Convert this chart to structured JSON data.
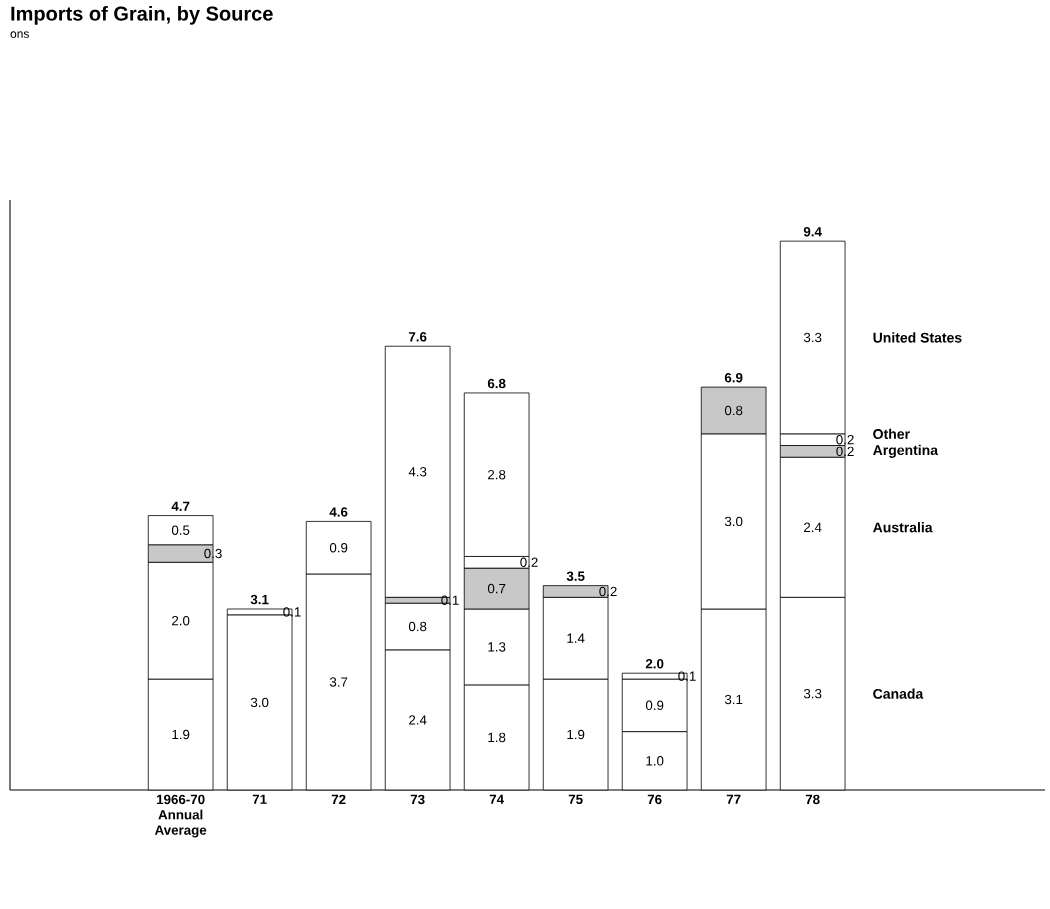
{
  "chart_data": {
    "type": "bar",
    "stacked": true,
    "title": "Imports of Grain, by Source",
    "subtitle": "ons",
    "categories": [
      "1966-70 Annual Average",
      "71",
      "72",
      "73",
      "74",
      "75",
      "76",
      "77",
      "78"
    ],
    "series": [
      {
        "name": "Canada",
        "color": "#ffffff",
        "values": [
          1.9,
          3.0,
          3.7,
          2.4,
          1.8,
          1.9,
          1.0,
          3.1,
          3.3
        ],
        "value_labels": [
          "1.9",
          "3.0",
          "3.7",
          "2.4",
          "1.8",
          "1.9",
          "1.0",
          "3.1",
          "3.3"
        ]
      },
      {
        "name": "Australia",
        "color": "#ffffff",
        "values": [
          2.0,
          null,
          null,
          0.8,
          1.3,
          1.4,
          0.9,
          3.0,
          2.4
        ],
        "value_labels": [
          "2.0",
          null,
          null,
          "0.8",
          "1.3",
          "1.4",
          "0.9",
          "3.0",
          "2.4"
        ]
      },
      {
        "name": "Argentina",
        "color": "#c8c8c8",
        "values": [
          0.3,
          null,
          null,
          0.1,
          0.7,
          0.2,
          null,
          0.8,
          0.2
        ],
        "value_labels": [
          "0.3",
          null,
          null,
          "0.1",
          "0.7",
          "0.2",
          null,
          "0.8",
          "0.2"
        ]
      },
      {
        "name": "Other",
        "color": "#ffffff",
        "values": [
          0.5,
          0.1,
          null,
          null,
          0.2,
          null,
          0.1,
          null,
          0.2
        ],
        "value_labels": [
          "0.5",
          "0.1",
          null,
          null,
          "0.2",
          null,
          "0.1",
          null,
          "0.2"
        ]
      },
      {
        "name": "United States",
        "color": "#ffffff",
        "values": [
          null,
          null,
          0.9,
          4.3,
          2.8,
          null,
          null,
          null,
          3.3
        ],
        "value_labels": [
          null,
          null,
          "0.9",
          "4.3",
          "2.8",
          null,
          null,
          null,
          "3.3"
        ]
      }
    ],
    "totals": [
      "4.7",
      "3.1",
      "4.6",
      "7.6",
      "6.8",
      "3.5",
      "2.0",
      "6.9",
      "9.4"
    ]
  }
}
